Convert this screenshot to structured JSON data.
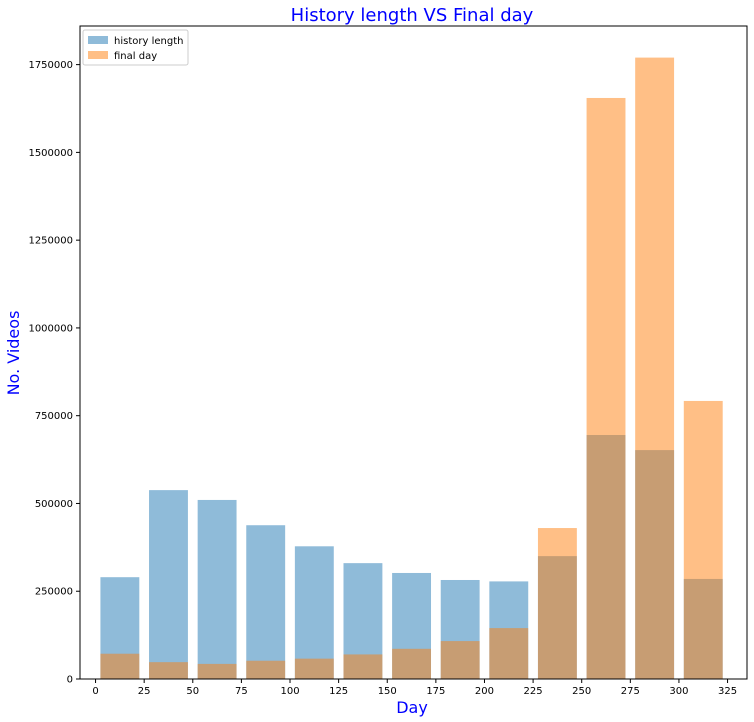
{
  "chart_data": {
    "type": "bar",
    "title": "History length VS Final day",
    "xlabel": "Day",
    "ylabel": "No. Videos",
    "xlim": [
      -8,
      335
    ],
    "ylim": [
      0,
      1860000
    ],
    "bar_width_days": 20,
    "x": [
      12.5,
      37.5,
      62.5,
      87.5,
      112.5,
      137.5,
      162.5,
      187.5,
      212.5,
      237.5,
      262.5,
      287.5,
      312.5
    ],
    "series": [
      {
        "name": "history length",
        "color": "#1f77b4",
        "opacity": 0.5,
        "values": [
          290000,
          538000,
          510000,
          438000,
          378000,
          330000,
          302000,
          282000,
          278000,
          350000,
          695000,
          652000,
          285000
        ]
      },
      {
        "name": "final day",
        "color": "#ff7f0e",
        "opacity": 0.5,
        "values": [
          72000,
          48000,
          43000,
          52000,
          58000,
          70000,
          86000,
          108000,
          145000,
          430000,
          1655000,
          1770000,
          792000
        ]
      }
    ],
    "xticks": [
      0,
      25,
      50,
      75,
      100,
      125,
      150,
      175,
      200,
      225,
      250,
      275,
      300,
      325
    ],
    "yticks": [
      0,
      250000,
      500000,
      750000,
      1000000,
      1250000,
      1500000,
      1750000
    ],
    "legend": "top-left",
    "grid": false
  }
}
